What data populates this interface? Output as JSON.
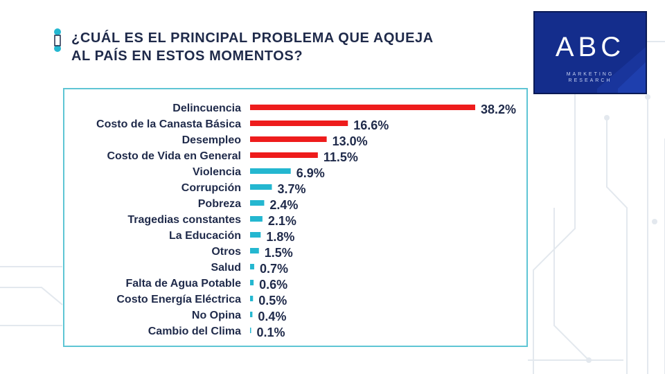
{
  "title": {
    "line1": "¿CUÁL ES EL PRINCIPAL PROBLEMA QUE AQUEJA",
    "line2": "AL PAÍS EN ESTOS MOMENTOS?"
  },
  "logo": {
    "text": "ABC",
    "sub1": "MARKETING",
    "sub2": "RESEARCH"
  },
  "colors": {
    "top4": "#ee1c1c",
    "others": "#24b7d0",
    "label": "#1f2a4a",
    "border": "#5ec5d4",
    "brand": "#142d8c"
  },
  "chart_data": {
    "type": "bar",
    "orientation": "horizontal",
    "title": "",
    "xlabel": "",
    "ylabel": "",
    "xlim": [
      0,
      38.2
    ],
    "grid": false,
    "legend": "none",
    "categories": [
      "Delincuencia",
      "Costo de la Canasta Básica",
      "Desempleo",
      "Costo de Vida en General",
      "Violencia",
      "Corrupción",
      "Pobreza",
      "Tragedias constantes",
      "La Educación",
      "Otros",
      "Salud",
      "Falta de Agua Potable",
      "Costo Energía Eléctrica",
      "No Opina",
      "Cambio del Clima"
    ],
    "values": [
      38.2,
      16.6,
      13.0,
      11.5,
      6.9,
      3.7,
      2.4,
      2.1,
      1.8,
      1.5,
      0.7,
      0.6,
      0.5,
      0.4,
      0.1
    ],
    "value_labels": [
      "38.2%",
      "16.6%",
      "13.0%",
      "11.5%",
      "6.9%",
      "3.7%",
      "2.4%",
      "2.1%",
      "1.8%",
      "1.5%",
      "0.7%",
      "0.6%",
      "0.5%",
      "0.4%",
      "0.1%"
    ],
    "bar_colors": [
      "#ee1c1c",
      "#ee1c1c",
      "#ee1c1c",
      "#ee1c1c",
      "#24b7d0",
      "#24b7d0",
      "#24b7d0",
      "#24b7d0",
      "#24b7d0",
      "#24b7d0",
      "#24b7d0",
      "#24b7d0",
      "#24b7d0",
      "#24b7d0",
      "#24b7d0"
    ]
  }
}
